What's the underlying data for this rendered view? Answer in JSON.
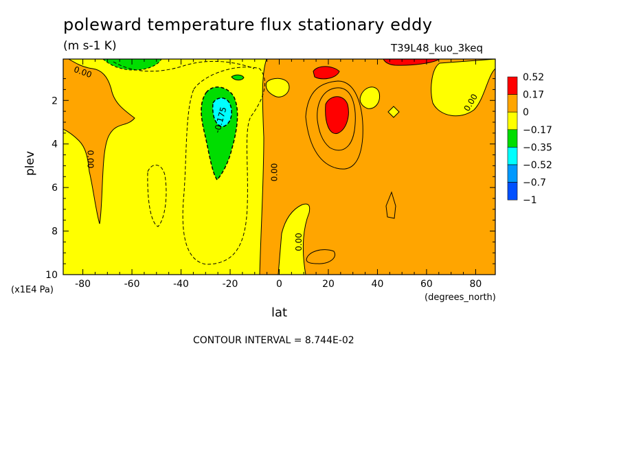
{
  "chart_data": {
    "type": "heatmap",
    "title": "poleward temperature flux stationary eddy",
    "units": "(m s-1 K)",
    "run_label": "T39L48_kuo_3keq",
    "xlabel": "lat",
    "x_units": "(degrees_north)",
    "ylabel": "plev",
    "y_multiplier": "(x1E4 Pa)",
    "xlim": [
      -88,
      88
    ],
    "ylim": [
      10,
      0.1
    ],
    "x_ticks": [
      "-80",
      "-60",
      "-40",
      "-20",
      "0",
      "20",
      "40",
      "60",
      "80"
    ],
    "y_ticks": [
      "2",
      "4",
      "6",
      "8",
      "10"
    ],
    "contour_interval_text": "CONTOUR INTERVAL = 8.744E-02",
    "contour_labels": [
      "0.00",
      "0.00",
      "0.00",
      "0.00",
      "-0.175",
      "0.00"
    ],
    "legend": {
      "levels": [
        "0.52",
        "0.17",
        "0",
        "−0.17",
        "−0.35",
        "−0.52",
        "−0.7",
        "−1"
      ],
      "colors": [
        "#ff0000",
        "#ffa500",
        "#ffff00",
        "#00dd00",
        "#00ffff",
        "#0099ff",
        "#0050ff"
      ]
    },
    "regions": [
      {
        "label": "positive flux NH",
        "x_range": [
          -2,
          88
        ],
        "y_range": [
          0.1,
          10
        ],
        "class": "0 to 0.17"
      },
      {
        "label": "red maximum",
        "center": [
          22,
          2.5
        ],
        "class": ">0.17"
      },
      {
        "label": "red maximum upper",
        "center": [
          20,
          0.6
        ],
        "class": ">0.17"
      },
      {
        "label": "negative core SH",
        "center": [
          -26,
          2.5
        ],
        "class": "-0.52 to -0.35"
      }
    ]
  }
}
